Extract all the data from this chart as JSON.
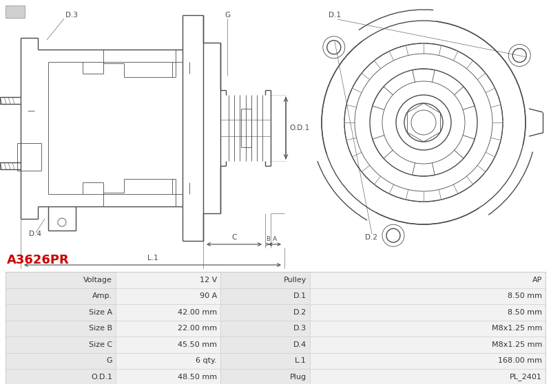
{
  "title": "A3626PR",
  "title_color": "#cc0000",
  "bg_color": "#ffffff",
  "table_rows": [
    [
      "Voltage",
      "12 V",
      "Pulley",
      "AP"
    ],
    [
      "Amp.",
      "90 A",
      "D.1",
      "8.50 mm"
    ],
    [
      "Size A",
      "42.00 mm",
      "D.2",
      "8.50 mm"
    ],
    [
      "Size B",
      "22.00 mm",
      "D.3",
      "M8x1.25 mm"
    ],
    [
      "Size C",
      "45.50 mm",
      "D.4",
      "M8x1.25 mm"
    ],
    [
      "G",
      "6 qty.",
      "L.1",
      "168.00 mm"
    ],
    [
      "O.D.1",
      "48.50 mm",
      "Plug",
      "PL_2401"
    ]
  ],
  "diagram_color": "#4a4a4a",
  "text_color": "#333333",
  "row_bg_label": "#e8e8e8",
  "row_bg_value": "#f2f2f2",
  "table_line_color": "#cccccc"
}
